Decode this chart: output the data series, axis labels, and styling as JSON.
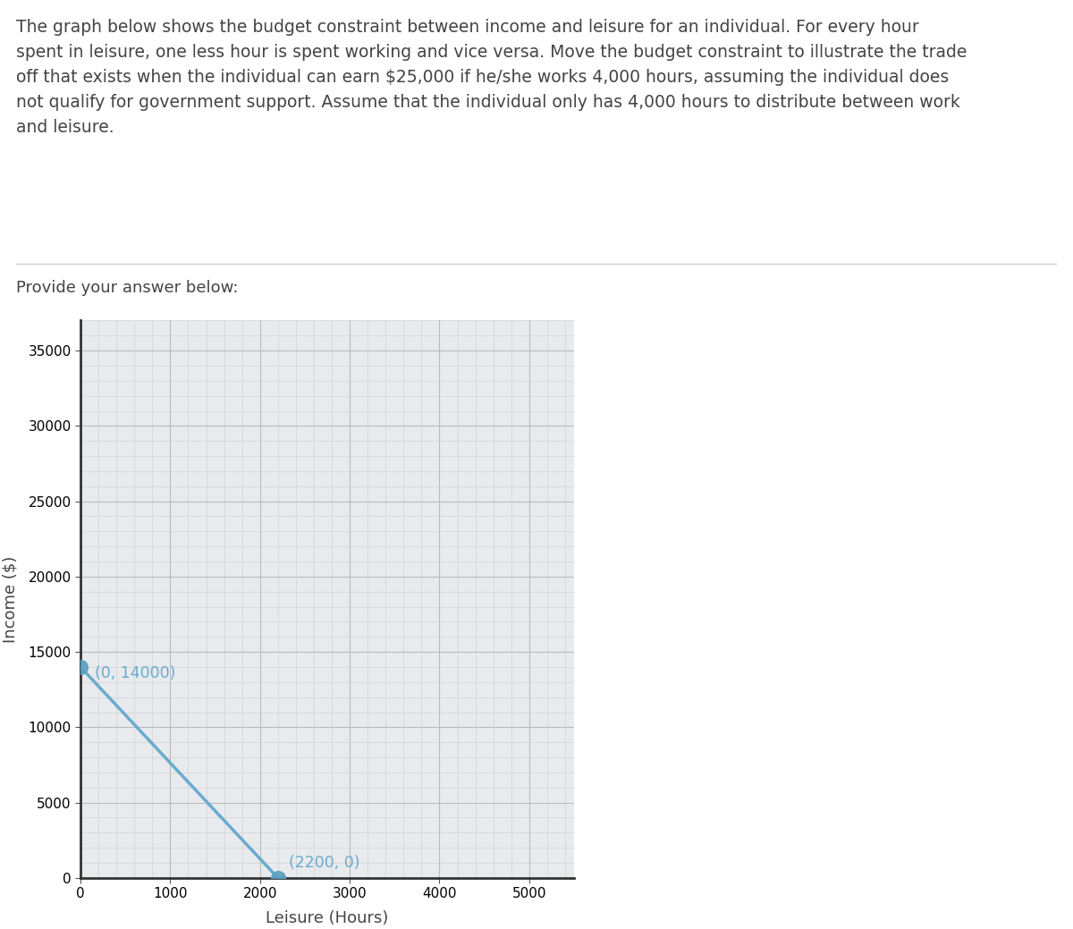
{
  "description_text": "The graph below shows the budget constraint between income and leisure for an individual. For every hour\nspent in leisure, one less hour is spent working and vice versa. Move the budget constraint to illustrate the trade\noff that exists when the individual can earn $25,000 if he/she works 4,000 hours, assuming the individual does\nnot qualify for government support. Assume that the individual only has 4,000 hours to distribute between work\nand leisure.",
  "provide_label": "Provide your answer below:",
  "line_x": [
    0,
    2200
  ],
  "line_y": [
    14000,
    0
  ],
  "point1": [
    0,
    14000
  ],
  "point2": [
    2200,
    0
  ],
  "label1": "(0, 14000)",
  "label2": "(2200, 0)",
  "xlabel": "Leisure (Hours)",
  "ylabel": "Income ($)",
  "xlim": [
    0,
    5500
  ],
  "ylim": [
    0,
    37000
  ],
  "yticks": [
    0,
    5000,
    10000,
    15000,
    20000,
    25000,
    30000,
    35000
  ],
  "xticks": [
    0,
    1000,
    2000,
    3000,
    4000,
    5000
  ],
  "line_color": "#6aabcf",
  "point_color": "#5a9fc0",
  "point_size": 130,
  "grid_major_color": "#bbbbbb",
  "grid_minor_color": "#cccccc",
  "plot_bg_color": "#e8eaed",
  "text_color": "#444444",
  "annotation_color": "#6aabcf",
  "fig_width": 12.0,
  "fig_height": 10.39
}
